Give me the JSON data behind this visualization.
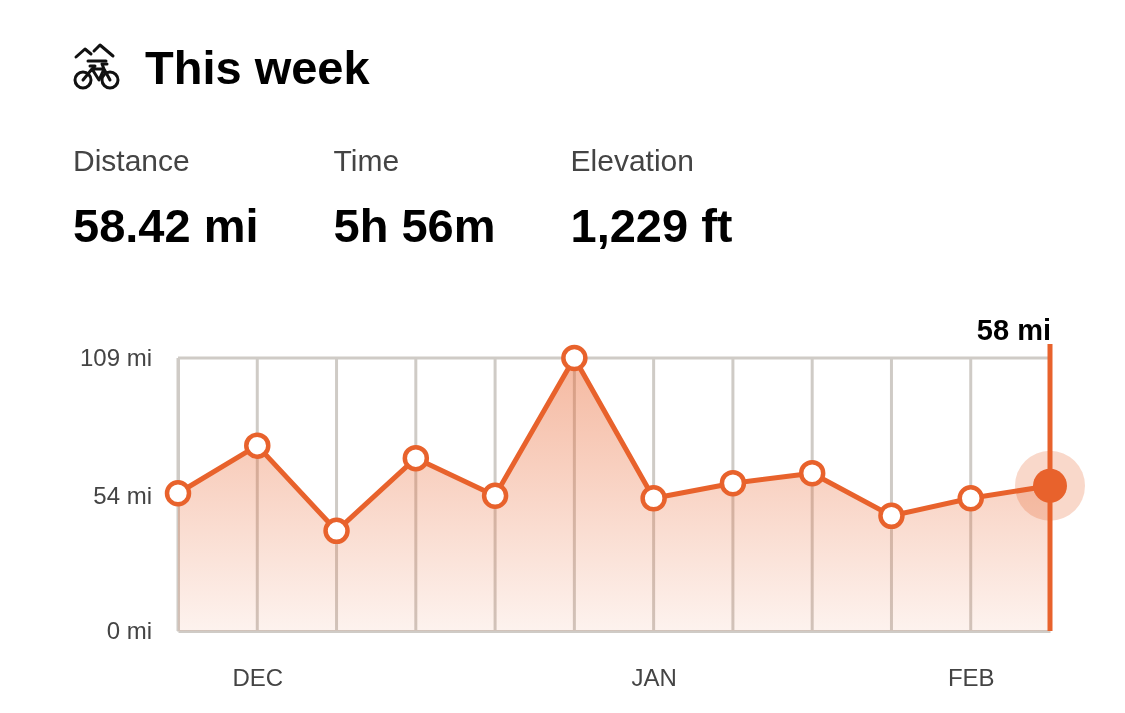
{
  "chart_data": {
    "type": "area",
    "title": "This week",
    "categories": [
      null,
      "DEC",
      null,
      null,
      null,
      null,
      "JAN",
      null,
      null,
      null,
      "FEB",
      null
    ],
    "series": [
      {
        "color": "#e8622c",
        "values": [
          55,
          74,
          40,
          69,
          54,
          109,
          53,
          59,
          63,
          46,
          53,
          58
        ]
      }
    ],
    "ylim": [
      0,
      109
    ],
    "yticks": [
      {
        "value": 0,
        "label": "0 mi"
      },
      {
        "value": 54,
        "label": "54 mi"
      },
      {
        "value": 109,
        "label": "109 mi"
      }
    ],
    "grid": "x",
    "marker": "circle",
    "line_style": "solid",
    "annotations": [
      "Distance",
      "58.42 mi",
      "Time",
      "5h 56m",
      "Elevation",
      "1,229 ft",
      "58 mi"
    ]
  }
}
